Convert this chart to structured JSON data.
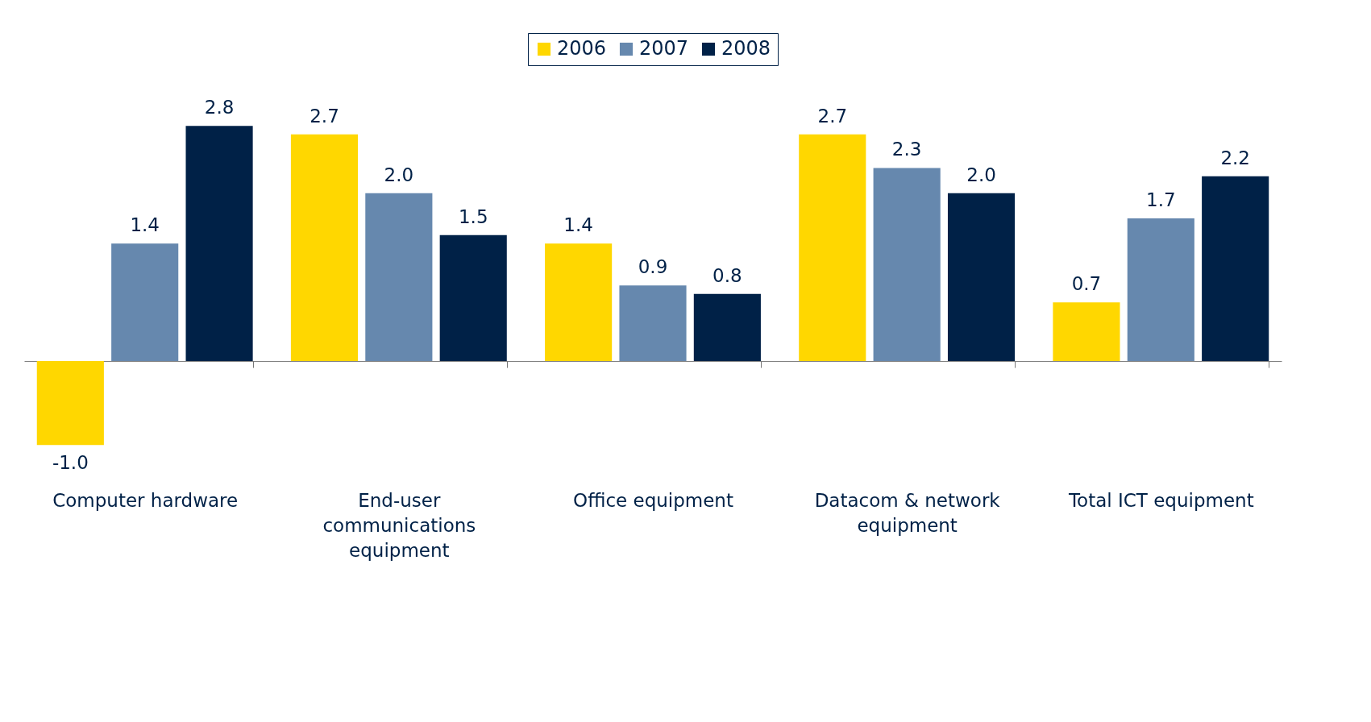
{
  "chart_data": {
    "type": "bar",
    "categories": [
      "Computer hardware",
      "End-user communications equipment",
      "Office equipment",
      "Datacom & network equipment",
      "Total ICT equipment"
    ],
    "series": [
      {
        "name": "2006",
        "color": "#ffd700",
        "values": [
          -1.0,
          2.7,
          1.4,
          2.7,
          0.7
        ],
        "value_labels": [
          "-1.0",
          "2.7",
          "1.4",
          "2.7",
          "0.7"
        ]
      },
      {
        "name": "2007",
        "color": "#6688ae",
        "values": [
          1.4,
          2.0,
          0.9,
          2.3,
          1.7
        ],
        "value_labels": [
          "1.4",
          "2.0",
          "0.9",
          "2.3",
          "1.7"
        ]
      },
      {
        "name": "2008",
        "color": "#002147",
        "values": [
          2.8,
          1.5,
          0.8,
          2.0,
          2.2
        ],
        "value_labels": [
          "2.8",
          "1.5",
          "0.8",
          "2.0",
          "2.2"
        ]
      }
    ],
    "legend": "top"
  }
}
